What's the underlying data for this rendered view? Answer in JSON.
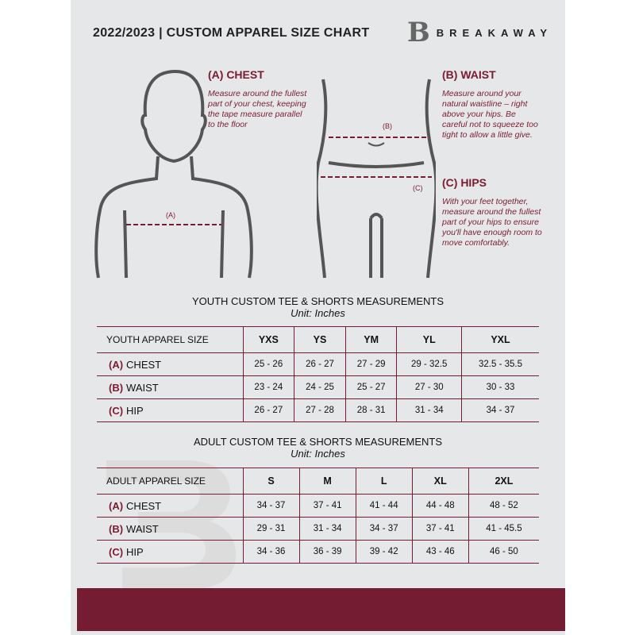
{
  "header": {
    "title": "2022/2023  |  CUSTOM APPAREL SIZE CHART",
    "logo_mark": "B",
    "brand": "BREAKAWAY"
  },
  "guide": {
    "chest": {
      "heading": "(A) CHEST",
      "text": "Measure around the fullest part of your chest, keeping the tape measure parallel to the floor",
      "marker": "(A)"
    },
    "waist": {
      "heading": "(B) WAIST",
      "text": "Measure around your natural waistline – right above your hips. Be careful not to squeeze too tight to allow a little give.",
      "marker": "(B)"
    },
    "hips": {
      "heading": "(C) HIPS",
      "text": "With your feet together, measure around the fullest part of your hips to ensure you'll have enough room to move comfortably.",
      "marker": "(C)"
    }
  },
  "youth": {
    "title": "YOUTH CUSTOM TEE & SHORTS MEASUREMENTS",
    "unit": "Unit: Inches",
    "size_label": "YOUTH APPAREL SIZE",
    "sizes": [
      "YXS",
      "YS",
      "YM",
      "YL",
      "YXL"
    ],
    "rows": [
      {
        "letter": "(A)",
        "name": "CHEST",
        "values": [
          "25 - 26",
          "26 - 27",
          "27 - 29",
          "29 - 32.5",
          "32.5 - 35.5"
        ]
      },
      {
        "letter": "(B)",
        "name": "WAIST",
        "values": [
          "23 - 24",
          "24 - 25",
          "25 - 27",
          "27 - 30",
          "30 - 33"
        ]
      },
      {
        "letter": "(C)",
        "name": "HIP",
        "values": [
          "26 - 27",
          "27 - 28",
          "28 - 31",
          "31 - 34",
          "34 - 37"
        ]
      }
    ]
  },
  "adult": {
    "title": "ADULT CUSTOM TEE & SHORTS MEASUREMENTS",
    "unit": "Unit: Inches",
    "size_label": "ADULT APPAREL SIZE",
    "sizes": [
      "S",
      "M",
      "L",
      "XL",
      "2XL"
    ],
    "rows": [
      {
        "letter": "(A)",
        "name": "CHEST",
        "values": [
          "34 - 37",
          "37 - 41",
          "41 - 44",
          "44 - 48",
          "48 - 52"
        ]
      },
      {
        "letter": "(B)",
        "name": "WAIST",
        "values": [
          "29 - 31",
          "31 - 34",
          "34 - 37",
          "37 - 41",
          "41 - 45.5"
        ]
      },
      {
        "letter": "(C)",
        "name": "HIP",
        "values": [
          "34 - 36",
          "36 - 39",
          "39 - 42",
          "43 - 46",
          "46 - 50"
        ]
      }
    ]
  },
  "colors": {
    "accent": "#7a1b31",
    "background": "#e6e7e8"
  }
}
